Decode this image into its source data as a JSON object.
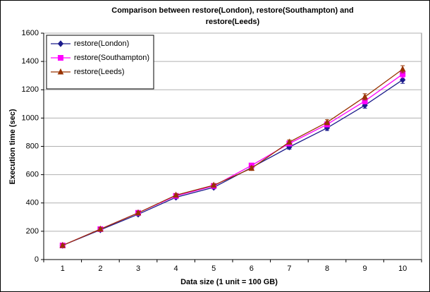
{
  "chart_data": {
    "type": "line",
    "title": [
      "Comparison between restore(London), restore(Southampton) and",
      "restore(Leeds)"
    ],
    "x_label": "Data size (1 unit = 100 GB)",
    "y_label": "Execution time (sec)",
    "categories": [
      "1",
      "2",
      "3",
      "4",
      "5",
      "6",
      "7",
      "8",
      "9",
      "10"
    ],
    "series": [
      {
        "name": "restore(London)",
        "color": "#1c1c8c",
        "marker": "diamond",
        "values": [
          100,
          210,
          320,
          440,
          510,
          650,
          795,
          930,
          1090,
          1270
        ],
        "errors": [
          10,
          10,
          10,
          10,
          10,
          15,
          15,
          18,
          20,
          25
        ]
      },
      {
        "name": "restore(Southampton)",
        "color": "#ff00ff",
        "marker": "square",
        "values": [
          100,
          215,
          330,
          450,
          520,
          665,
          820,
          955,
          1120,
          1310
        ],
        "errors": [
          10,
          10,
          10,
          10,
          10,
          15,
          15,
          18,
          20,
          25
        ]
      },
      {
        "name": "restore(Leeds)",
        "color": "#993300",
        "marker": "triangle",
        "values": [
          100,
          215,
          330,
          455,
          525,
          645,
          830,
          970,
          1150,
          1345
        ],
        "errors": [
          10,
          10,
          10,
          10,
          10,
          15,
          15,
          18,
          22,
          25
        ]
      }
    ],
    "ylim": [
      0,
      1600
    ],
    "yticks": [
      0,
      200,
      400,
      600,
      800,
      1000,
      1200,
      1400,
      1600
    ],
    "grid": true,
    "legend": "upper left"
  }
}
